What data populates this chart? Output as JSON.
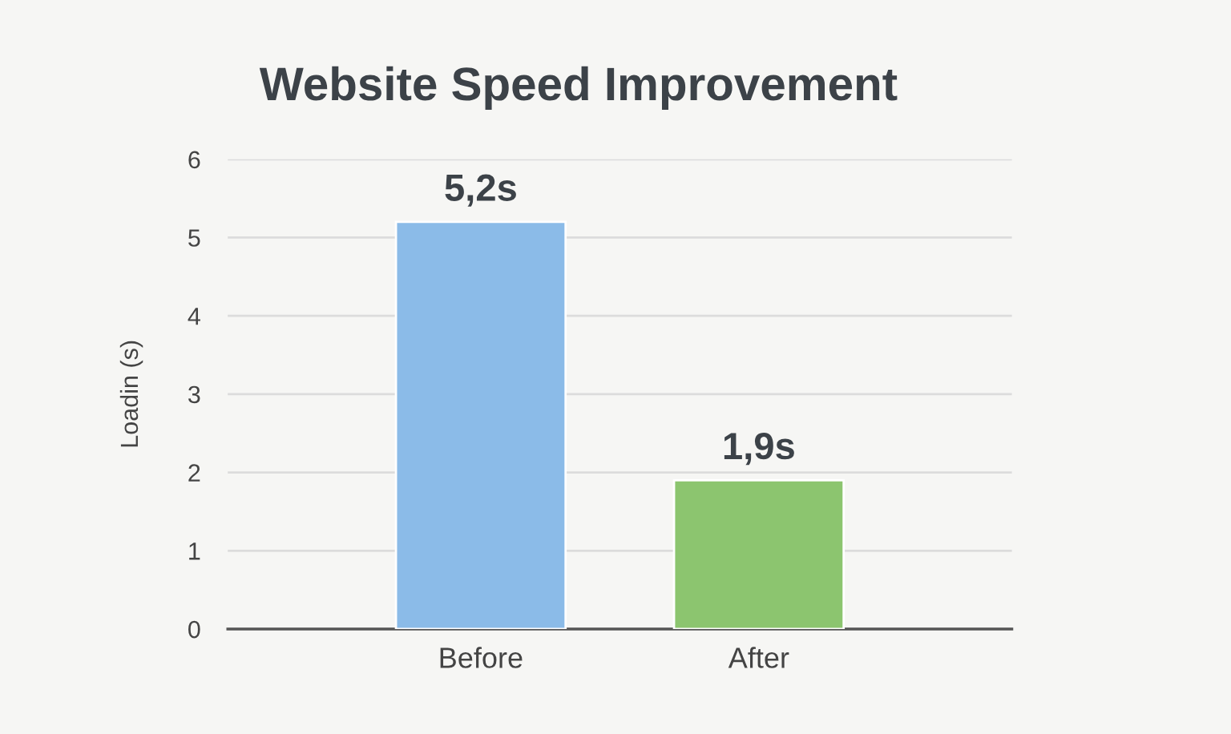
{
  "chart_data": {
    "type": "bar",
    "title": "Website Speed Improvement",
    "ylabel": "Loadin (s)",
    "categories": [
      "Before",
      "After"
    ],
    "values": [
      5.2,
      1.9
    ],
    "colors": [
      "#8bbbe8",
      "#8cc56f"
    ],
    "value_labels": [
      "5,2s",
      "1,9s"
    ],
    "ylim": [
      0,
      6
    ],
    "yticks": [
      0,
      1,
      2,
      3,
      4,
      5,
      6
    ],
    "grid": "y",
    "legend": false
  }
}
